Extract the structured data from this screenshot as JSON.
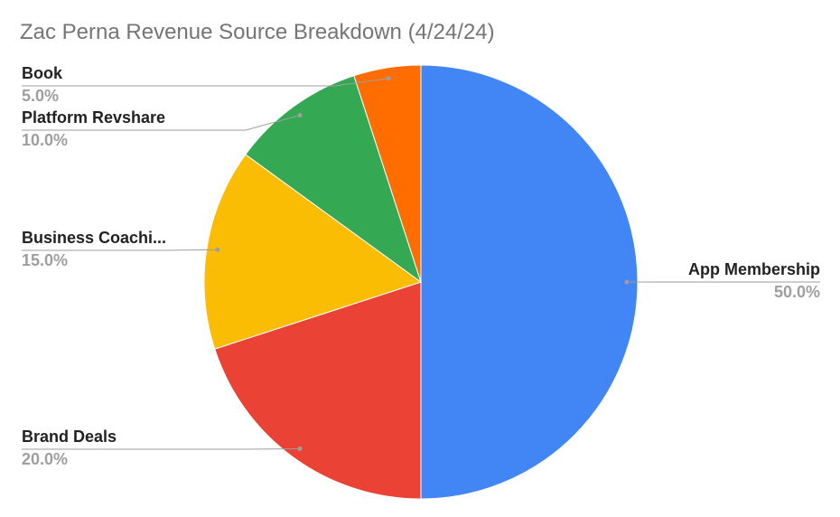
{
  "chart_data": {
    "type": "pie",
    "title": "Zac Perna Revenue Source Breakdown (4/24/24)",
    "slices": [
      {
        "label": "App Membership",
        "value": 50.0,
        "percent_label": "50.0%",
        "color": "#4285F4"
      },
      {
        "label": "Brand Deals",
        "value": 20.0,
        "percent_label": "20.0%",
        "color": "#EA4335"
      },
      {
        "label": "Business Coachi...",
        "value": 15.0,
        "percent_label": "15.0%",
        "color": "#FBBC04"
      },
      {
        "label": "Platform Revshare",
        "value": 10.0,
        "percent_label": "10.0%",
        "color": "#34A853"
      },
      {
        "label": "Book",
        "value": 5.0,
        "percent_label": "5.0%",
        "color": "#FF6D01"
      }
    ],
    "legend": "none (labels beside slices)",
    "start_angle": "12 o'clock",
    "direction": "clockwise"
  }
}
